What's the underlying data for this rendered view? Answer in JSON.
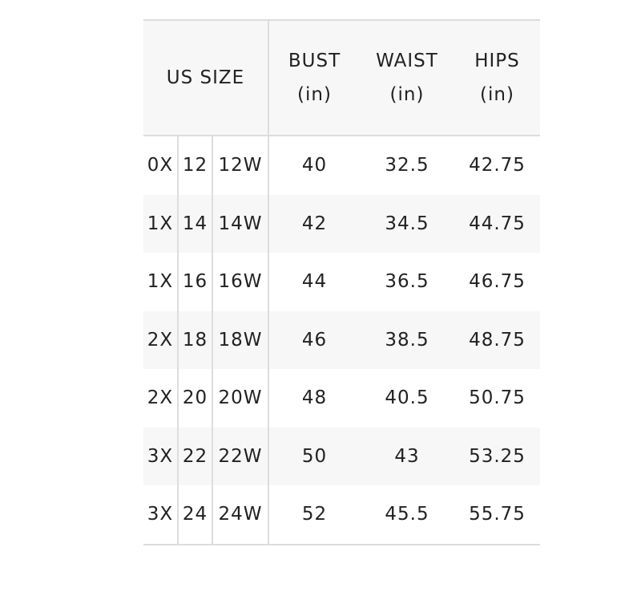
{
  "header": {
    "us_size": "US SIZE",
    "bust": "BUST",
    "waist": "WAIST",
    "hips": "HIPS",
    "unit": "(in)"
  },
  "rows": [
    [
      "0X",
      "12",
      "12W",
      "40",
      "32.5",
      "42.75"
    ],
    [
      "1X",
      "14",
      "14W",
      "42",
      "34.5",
      "44.75"
    ],
    [
      "1X",
      "16",
      "16W",
      "44",
      "36.5",
      "46.75"
    ],
    [
      "2X",
      "18",
      "18W",
      "46",
      "38.5",
      "48.75"
    ],
    [
      "2X",
      "20",
      "20W",
      "48",
      "40.5",
      "50.75"
    ],
    [
      "3X",
      "22",
      "22W",
      "50",
      "43",
      "53.25"
    ],
    [
      "3X",
      "24",
      "24W",
      "52",
      "45.5",
      "55.75"
    ]
  ]
}
